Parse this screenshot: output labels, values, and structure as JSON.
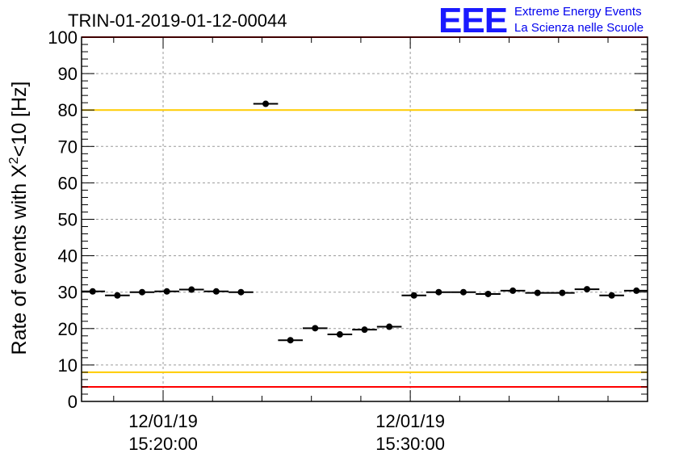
{
  "chart_data": {
    "type": "scatter",
    "title": "TRIN-01-2019-01-12-00044",
    "ylabel": {
      "prefix": "Rate of events with ",
      "symbol": "X",
      "superscript": "2",
      "suffix": "<10 [Hz]"
    },
    "xlabel": "",
    "ylim": [
      0,
      100
    ],
    "y_ticks": [
      "0",
      "10",
      "20",
      "30",
      "40",
      "50",
      "60",
      "70",
      "80",
      "90",
      "100"
    ],
    "xlim_minutes": [
      15.0,
      37.9
    ],
    "x_ticks": [
      {
        "minute": 18.3,
        "date": "12/01/19",
        "time": "15:20:00"
      },
      {
        "minute": 28.3,
        "date": "12/01/19",
        "time": "15:30:00"
      }
    ],
    "grid": true,
    "points": [
      {
        "x": 15.45,
        "y": 30.2
      },
      {
        "x": 16.45,
        "y": 29.1
      },
      {
        "x": 17.45,
        "y": 30.0
      },
      {
        "x": 18.45,
        "y": 30.2
      },
      {
        "x": 19.45,
        "y": 30.7
      },
      {
        "x": 20.45,
        "y": 30.2
      },
      {
        "x": 21.45,
        "y": 30.0
      },
      {
        "x": 22.45,
        "y": 81.7
      },
      {
        "x": 23.45,
        "y": 16.8
      },
      {
        "x": 24.45,
        "y": 20.1
      },
      {
        "x": 25.45,
        "y": 18.4
      },
      {
        "x": 26.45,
        "y": 19.7
      },
      {
        "x": 27.45,
        "y": 20.5
      },
      {
        "x": 28.45,
        "y": 29.1
      },
      {
        "x": 29.45,
        "y": 30.0
      },
      {
        "x": 30.45,
        "y": 30.0
      },
      {
        "x": 31.45,
        "y": 29.5
      },
      {
        "x": 32.45,
        "y": 30.4
      },
      {
        "x": 33.45,
        "y": 29.8
      },
      {
        "x": 34.45,
        "y": 29.8
      },
      {
        "x": 35.45,
        "y": 30.8
      },
      {
        "x": 36.45,
        "y": 29.1
      },
      {
        "x": 37.45,
        "y": 30.4
      }
    ],
    "x_error_minutes": 0.5,
    "reference_lines": [
      {
        "y": 100,
        "color": "#ff0000"
      },
      {
        "y": 80,
        "color": "#ffcc00"
      },
      {
        "y": 8,
        "color": "#ffcc00"
      },
      {
        "y": 4,
        "color": "#ff0000"
      }
    ]
  },
  "logo": {
    "mark": "EEE",
    "line1": "Extreme Energy Events",
    "line2": "La Scienza nelle Scuole"
  }
}
